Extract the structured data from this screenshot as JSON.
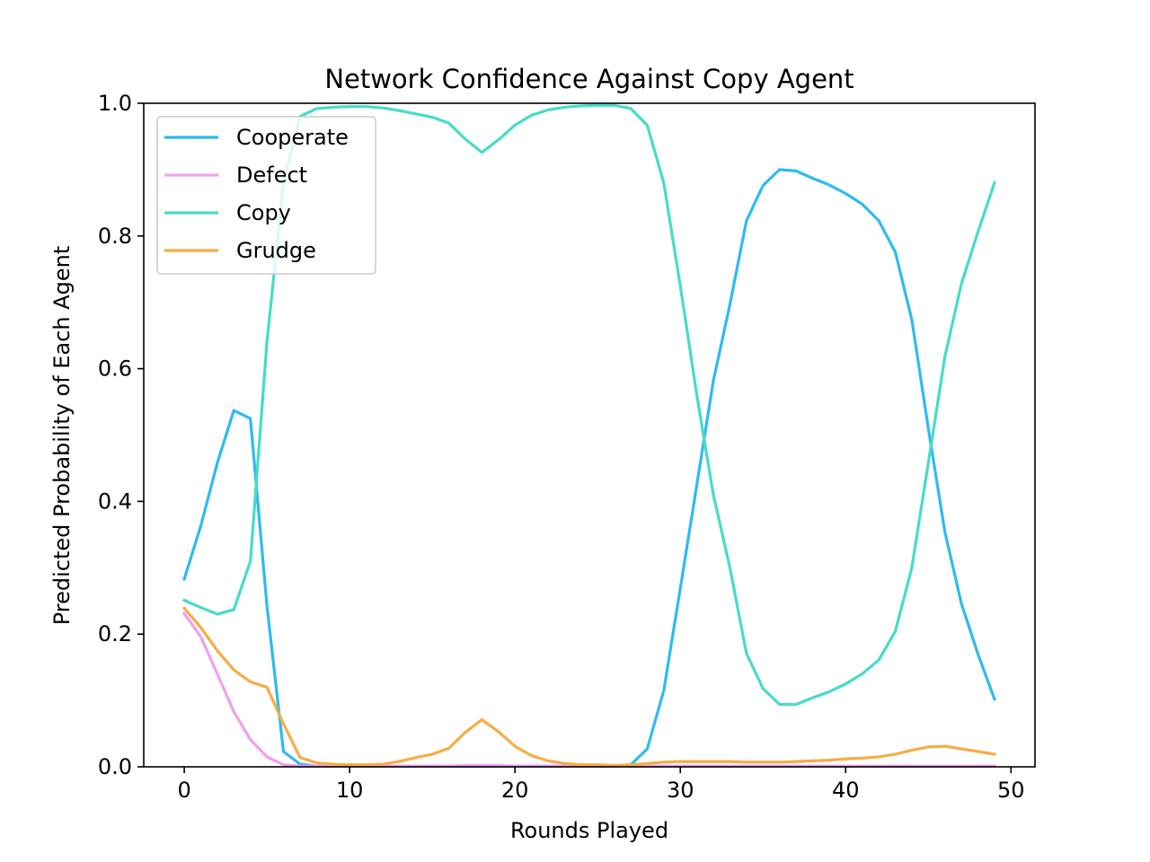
{
  "chart_data": {
    "type": "line",
    "title": "Network Confidence Against Copy Agent",
    "xlabel": "Rounds Played",
    "ylabel": "Predicted Probability of Each Agent",
    "xlim": [
      -2.45,
      51.45
    ],
    "ylim": [
      0.0,
      1.0
    ],
    "xticks": [
      0,
      10,
      20,
      30,
      40,
      50
    ],
    "yticks": [
      0.0,
      0.2,
      0.4,
      0.6,
      0.8,
      1.0
    ],
    "xtick_labels": [
      "0",
      "10",
      "20",
      "30",
      "40",
      "50"
    ],
    "ytick_labels": [
      "0.0",
      "0.2",
      "0.4",
      "0.6",
      "0.8",
      "1.0"
    ],
    "grid": false,
    "legend_position": "upper-left",
    "x": [
      0,
      1,
      2,
      3,
      4,
      5,
      6,
      7,
      8,
      9,
      10,
      11,
      12,
      13,
      14,
      15,
      16,
      17,
      18,
      19,
      20,
      21,
      22,
      23,
      24,
      25,
      26,
      27,
      28,
      29,
      30,
      31,
      32,
      33,
      34,
      35,
      36,
      37,
      38,
      39,
      40,
      41,
      42,
      43,
      44,
      45,
      46,
      47,
      48,
      49
    ],
    "series": [
      {
        "name": "Cooperate",
        "color": "#2ebbf0",
        "values": [
          0.283,
          0.363,
          0.458,
          0.537,
          0.525,
          0.243,
          0.023,
          0.004,
          0.001,
          0.001,
          0.001,
          0.001,
          0.001,
          0.001,
          0.001,
          0.001,
          0.001,
          0.001,
          0.001,
          0.001,
          0.001,
          0.001,
          0.001,
          0.001,
          0.001,
          0.001,
          0.001,
          0.003,
          0.027,
          0.115,
          0.269,
          0.425,
          0.582,
          0.697,
          0.823,
          0.876,
          0.9,
          0.898,
          0.887,
          0.877,
          0.864,
          0.848,
          0.823,
          0.776,
          0.674,
          0.51,
          0.354,
          0.246,
          0.17,
          0.102
        ]
      },
      {
        "name": "Defect",
        "color": "#f0a0f0",
        "values": [
          0.231,
          0.196,
          0.14,
          0.083,
          0.041,
          0.015,
          0.003,
          0.001,
          0.001,
          0.001,
          0.001,
          0.001,
          0.001,
          0.001,
          0.001,
          0.001,
          0.001,
          0.002,
          0.002,
          0.002,
          0.001,
          0.001,
          0.001,
          0.001,
          0.001,
          0.001,
          0.001,
          0.001,
          0.001,
          0.001,
          0.001,
          0.001,
          0.001,
          0.001,
          0.001,
          0.001,
          0.001,
          0.001,
          0.001,
          0.001,
          0.001,
          0.001,
          0.001,
          0.001,
          0.001,
          0.001,
          0.001,
          0.001,
          0.001,
          0.001
        ]
      },
      {
        "name": "Copy",
        "color": "#46dcc8",
        "values": [
          0.251,
          0.24,
          0.23,
          0.237,
          0.31,
          0.64,
          0.88,
          0.98,
          0.992,
          0.994,
          0.995,
          0.995,
          0.993,
          0.989,
          0.984,
          0.979,
          0.97,
          0.946,
          0.926,
          0.945,
          0.967,
          0.982,
          0.99,
          0.994,
          0.996,
          0.997,
          0.997,
          0.992,
          0.967,
          0.88,
          0.725,
          0.56,
          0.41,
          0.3,
          0.171,
          0.118,
          0.094,
          0.094,
          0.104,
          0.113,
          0.125,
          0.14,
          0.161,
          0.204,
          0.3,
          0.458,
          0.618,
          0.728,
          0.806,
          0.88
        ]
      },
      {
        "name": "Grudge",
        "color": "#f5ad46",
        "values": [
          0.239,
          0.21,
          0.175,
          0.146,
          0.128,
          0.12,
          0.065,
          0.014,
          0.006,
          0.004,
          0.003,
          0.003,
          0.004,
          0.008,
          0.014,
          0.019,
          0.028,
          0.052,
          0.071,
          0.053,
          0.031,
          0.017,
          0.009,
          0.005,
          0.003,
          0.003,
          0.002,
          0.003,
          0.005,
          0.007,
          0.008,
          0.008,
          0.008,
          0.008,
          0.007,
          0.007,
          0.007,
          0.008,
          0.009,
          0.01,
          0.012,
          0.013,
          0.015,
          0.019,
          0.025,
          0.03,
          0.031,
          0.027,
          0.023,
          0.019
        ]
      }
    ]
  }
}
